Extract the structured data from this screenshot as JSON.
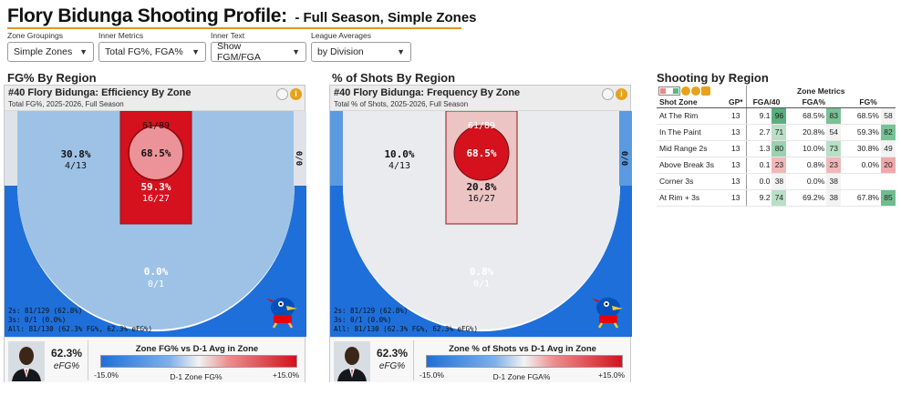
{
  "title": {
    "main": "Flory Bidunga Shooting Profile:",
    "sub": "- Full Season, Simple Zones"
  },
  "controls": [
    {
      "label": "Zone Groupings",
      "value": "Simple Zones"
    },
    {
      "label": "Inner Metrics",
      "value": "Total FG%, FGA%"
    },
    {
      "label": "Inner Text",
      "value": "Show FGM/FGA"
    },
    {
      "label": "League Averages",
      "value": "by Division"
    }
  ],
  "efficiency": {
    "section": "FG% By Region",
    "title": "#40 Flory Bidunga: Efficiency By Zone",
    "subtitle": "Total FG%, 2025-2026, Full Season",
    "zones": {
      "rim_fgm": "61/89",
      "rim_pct": "68.5%",
      "paint_pct": "59.3%",
      "paint_fgm": "16/27",
      "mid_pct": "30.8%",
      "mid_fgm": "4/13",
      "corner": "0/0",
      "three_pct": "0.0%",
      "three_fgm": "0/1",
      "corner_left": "0"
    },
    "summary": [
      "2s: 81/129 (62.8%)",
      "3s: 0/1 (0.0%)",
      "All: 81/130 (62.3% FG%, 62.3% eFG%)"
    ],
    "efg": "62.3%",
    "efg_label": "eFG%",
    "legend_title": "Zone FG% vs D-1 Avg in Zone",
    "legend_min": "-15.0%",
    "legend_max": "+15.0%",
    "legend_mid": "D-1 Zone FG%",
    "colors": {
      "rim": "#d4111d",
      "paint": "#d4111d",
      "mid": "#9ec2e6",
      "three": "#1e6fd9",
      "corner": "#dfe3e8"
    }
  },
  "frequency": {
    "section": "% of Shots By Region",
    "title": "#40 Flory Bidunga: Frequency By Zone",
    "subtitle": "Total % of Shots, 2025-2026, Full Season",
    "zones": {
      "rim_fgm": "61/89",
      "rim_pct": "68.5%",
      "paint_pct": "20.8%",
      "paint_fgm": "16/27",
      "mid_pct": "10.0%",
      "mid_fgm": "4/13",
      "corner": "0/0",
      "three_pct": "0.8%",
      "three_fgm": "0/1"
    },
    "summary": [
      "2s: 81/129 (62.8%)",
      "3s: 0/1 (0.0%)",
      "All: 81/130 (62.3% FG%, 62.3% eFG%)"
    ],
    "efg": "62.3%",
    "efg_label": "eFG%",
    "legend_title": "Zone % of Shots vs D-1 Avg in Zone",
    "legend_min": "-15.0%",
    "legend_max": "+15.0%",
    "legend_mid": "D-1 Zone FGA%",
    "colors": {
      "rim": "#d4111d",
      "paint": "#ecc4c4",
      "mid": "#e9ebee",
      "three": "#1e6fd9",
      "corner": "#5a9ae0"
    }
  },
  "table": {
    "section": "Shooting by Region",
    "group_header": "Zone Metrics",
    "columns": [
      "Shot Zone",
      "GP*",
      "FGA/40",
      "FGA%",
      "FG%"
    ],
    "rows": [
      {
        "zone": "At The Rim",
        "gp": "13",
        "fga40": "9.1",
        "fga40_p": "96",
        "fgapct": "68.5%",
        "fgapct_p": "83",
        "fgpct": "68.5%",
        "fgpct_p": "58",
        "c1": "#57b07d",
        "c2": "#79c196",
        "c3": "#f3f3f3"
      },
      {
        "zone": "In The Paint",
        "gp": "13",
        "fga40": "2.7",
        "fga40_p": "71",
        "fgapct": "20.8%",
        "fgapct_p": "54",
        "fgpct": "59.3%",
        "fgpct_p": "82",
        "c1": "#b9dfc7",
        "c2": "#f3f3f3",
        "c3": "#79c196"
      },
      {
        "zone": "Mid Range 2s",
        "gp": "13",
        "fga40": "1.3",
        "fga40_p": "80",
        "fgapct": "10.0%",
        "fgapct_p": "73",
        "fgpct": "30.8%",
        "fgpct_p": "49",
        "c1": "#9ad1b0",
        "c2": "#b9dfc7",
        "c3": "#f3f3f3"
      },
      {
        "zone": "Above Break 3s",
        "gp": "13",
        "fga40": "0.1",
        "fga40_p": "23",
        "fgapct": "0.8%",
        "fgapct_p": "23",
        "fgpct": "0.0%",
        "fgpct_p": "20",
        "c1": "#f1b8b8",
        "c2": "#f1b8b8",
        "c3": "#ecaaaa"
      },
      {
        "zone": "Corner 3s",
        "gp": "13",
        "fga40": "0.0",
        "fga40_p": "38",
        "fgapct": "0.0%",
        "fgapct_p": "38",
        "fgpct": "",
        "fgpct_p": "",
        "c1": "#f3f3f3",
        "c2": "#f3f3f3",
        "c3": "#ffffff"
      },
      {
        "zone": "At Rim + 3s",
        "gp": "13",
        "fga40": "9.2",
        "fga40_p": "74",
        "fgapct": "69.2%",
        "fgapct_p": "38",
        "fgpct": "67.8%",
        "fgpct_p": "85",
        "c1": "#b9dfc7",
        "c2": "#f3f3f3",
        "c3": "#6fbd8d"
      }
    ]
  }
}
